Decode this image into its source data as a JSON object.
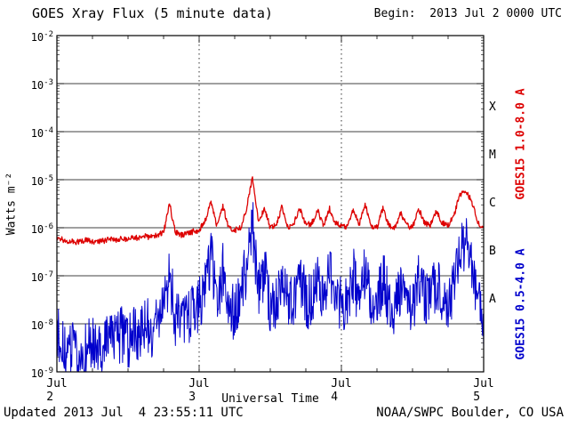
{
  "header": {
    "title": "GOES Xray Flux (5 minute data)",
    "begin": "Begin:  2013 Jul 2 0000 UTC"
  },
  "footer": {
    "updated": "Updated 2013 Jul  4 23:55:11 UTC",
    "credit": "NOAA/SWPC Boulder, CO USA"
  },
  "chart_data": {
    "type": "line",
    "title": "GOES Xray Flux (5 minute data)",
    "xlabel": "Universal Time",
    "ylabel": "Watts m⁻²",
    "x_start": "2013 Jul 2 0000 UTC",
    "x_span_hours": 72,
    "sample_interval_minutes": 5,
    "x_ticks": [
      {
        "hour": 0,
        "label": "Jul 2"
      },
      {
        "hour": 24,
        "label": "Jul 3"
      },
      {
        "hour": 48,
        "label": "Jul 4"
      },
      {
        "hour": 72,
        "label": "Jul 5"
      }
    ],
    "x_minor_tick_step_hours": 6,
    "x_day_gridline_hours": [
      24,
      48
    ],
    "y_log_range": [
      -9,
      -2
    ],
    "y_tick_exponents": [
      -2,
      -3,
      -4,
      -5,
      -6,
      -7,
      -8,
      -9
    ],
    "flare_classes": [
      {
        "label": "X",
        "center_exponent": -3.5
      },
      {
        "label": "M",
        "center_exponent": -4.5
      },
      {
        "label": "C",
        "center_exponent": -5.5
      },
      {
        "label": "B",
        "center_exponent": -6.5
      },
      {
        "label": "A",
        "center_exponent": -7.5
      }
    ],
    "series": [
      {
        "name": "GOES15 1.0-8.0 A",
        "color": "#dd0000",
        "stroke_width": 1.3,
        "noise_amp_log": 0.06,
        "log_flux_hourly": [
          -6.22,
          -6.25,
          -6.28,
          -6.3,
          -6.28,
          -6.25,
          -6.28,
          -6.3,
          -6.27,
          -6.24,
          -6.26,
          -6.22,
          -6.25,
          -6.2,
          -6.22,
          -6.18,
          -6.2,
          -6.15,
          -6.1,
          -5.5,
          -6.1,
          -6.15,
          -6.12,
          -6.08,
          -6.05,
          -5.85,
          -5.45,
          -5.95,
          -5.55,
          -6.0,
          -6.05,
          -6.0,
          -5.6,
          -4.95,
          -5.9,
          -5.6,
          -6.0,
          -5.95,
          -5.55,
          -6.0,
          -5.9,
          -5.6,
          -5.95,
          -5.9,
          -5.65,
          -5.95,
          -5.6,
          -5.9,
          -5.95,
          -6.0,
          -5.6,
          -5.95,
          -5.5,
          -5.95,
          -6.0,
          -5.6,
          -5.95,
          -6.0,
          -5.7,
          -5.95,
          -6.0,
          -5.6,
          -5.9,
          -5.95,
          -5.65,
          -5.9,
          -5.95,
          -5.75,
          -5.3,
          -5.25,
          -5.45,
          -5.9,
          -6.0
        ]
      },
      {
        "name": "GOES15 0.5-4.0 A",
        "color": "#0000cc",
        "stroke_width": 1.0,
        "noise_amp_log": 0.6,
        "log_flux_hourly": [
          -8.2,
          -8.5,
          -8.7,
          -8.4,
          -8.75,
          -8.5,
          -8.3,
          -8.6,
          -8.45,
          -8.25,
          -8.4,
          -8.2,
          -8.35,
          -8.1,
          -8.3,
          -8.0,
          -8.15,
          -7.9,
          -7.8,
          -6.9,
          -7.9,
          -8.0,
          -7.85,
          -7.7,
          -7.6,
          -7.3,
          -6.6,
          -7.6,
          -6.9,
          -7.7,
          -7.8,
          -7.4,
          -6.8,
          -5.95,
          -7.4,
          -6.9,
          -7.7,
          -7.5,
          -6.9,
          -7.6,
          -7.4,
          -7.0,
          -7.55,
          -7.45,
          -7.05,
          -7.6,
          -7.0,
          -7.4,
          -7.55,
          -7.65,
          -7.0,
          -7.5,
          -6.9,
          -7.5,
          -7.6,
          -7.05,
          -7.55,
          -7.65,
          -7.2,
          -7.55,
          -7.65,
          -7.05,
          -7.45,
          -7.55,
          -7.15,
          -7.45,
          -7.55,
          -7.3,
          -6.4,
          -6.3,
          -6.7,
          -7.6,
          -8.0
        ]
      }
    ]
  }
}
